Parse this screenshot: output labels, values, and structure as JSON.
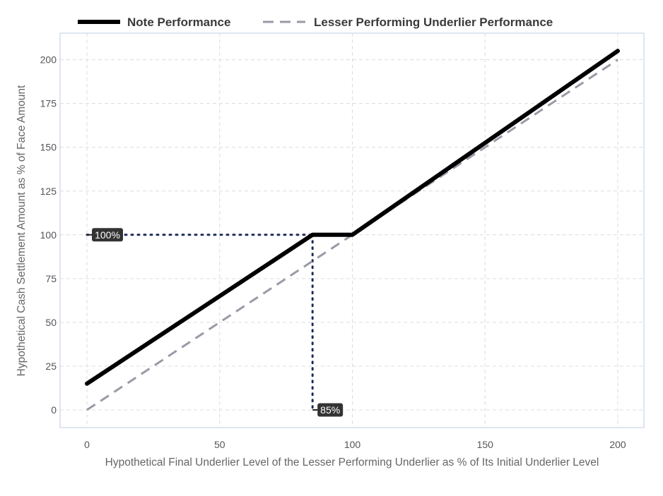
{
  "chart_data": {
    "type": "line",
    "title": "",
    "xlabel": "Hypothetical Final Underlier Level of the Lesser Performing Underlier as % of Its Initial Underlier Level",
    "ylabel": "Hypothetical Cash Settlement Amount as % of Face Amount",
    "xlim": [
      -10,
      210
    ],
    "ylim": [
      -10,
      215
    ],
    "x_ticks": [
      0,
      50,
      100,
      150,
      200
    ],
    "y_ticks": [
      0,
      25,
      50,
      75,
      100,
      125,
      150,
      175,
      200
    ],
    "grid": true,
    "legend_position": "top",
    "series": [
      {
        "name": "Note Performance",
        "style": "solid",
        "color": "#000000",
        "points": [
          [
            0,
            15
          ],
          [
            85,
            100
          ],
          [
            100,
            100
          ],
          [
            200,
            205
          ]
        ]
      },
      {
        "name": "Lesser Performing Underlier Performance",
        "style": "dashed",
        "color": "#9a9aa6",
        "points": [
          [
            0,
            0
          ],
          [
            200,
            200
          ]
        ]
      }
    ],
    "reference_lines": [
      {
        "points": [
          [
            0,
            100
          ],
          [
            85,
            100
          ]
        ],
        "style": "dotted",
        "color": "#1f2a5a"
      },
      {
        "points": [
          [
            85,
            100
          ],
          [
            85,
            0
          ]
        ],
        "style": "dotted",
        "color": "#1f2a5a"
      }
    ],
    "annotations": [
      {
        "text": "100%",
        "x": 0,
        "y": 100
      },
      {
        "text": "85%",
        "x": 85,
        "y": 0
      }
    ]
  }
}
